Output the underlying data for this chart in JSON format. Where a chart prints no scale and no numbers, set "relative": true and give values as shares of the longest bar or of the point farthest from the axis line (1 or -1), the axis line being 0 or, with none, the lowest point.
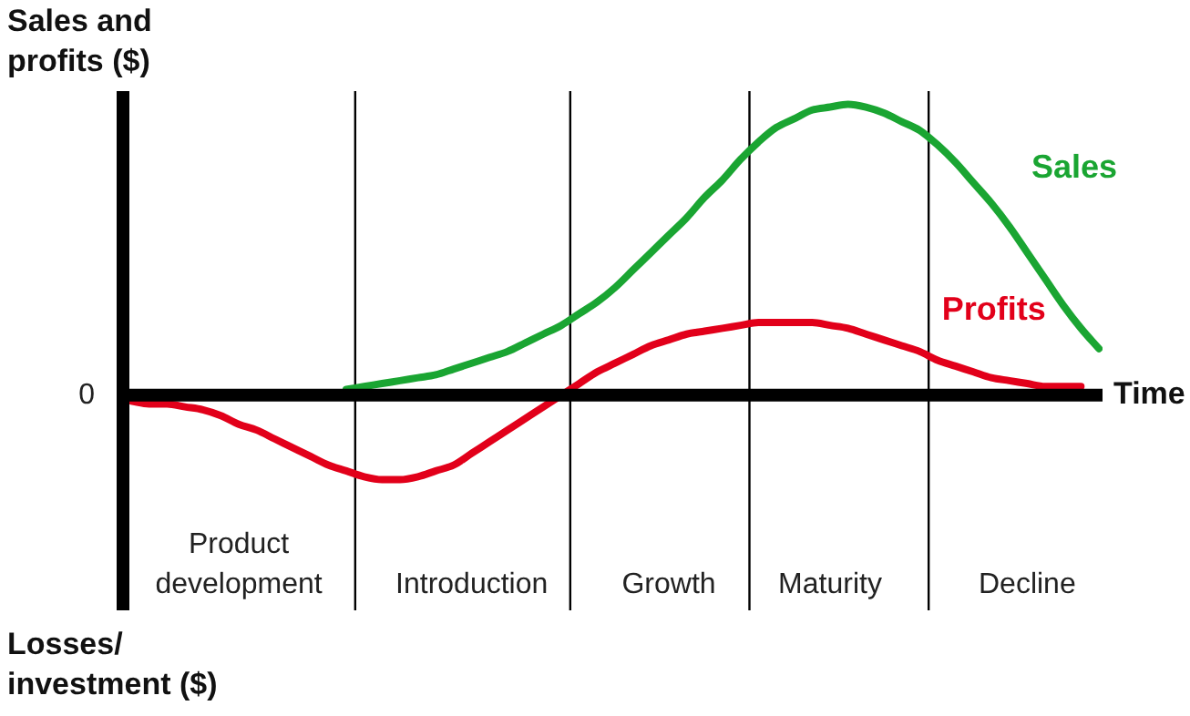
{
  "chart_data": {
    "type": "line",
    "relative": true,
    "ylabel": "Sales and profits ($)",
    "xlabel": "Time",
    "tick_labels": "x",
    "legend": false,
    "categories": [
      null,
      null,
      null,
      null,
      null,
      null,
      "Product development",
      null,
      null,
      null,
      null,
      null,
      null,
      null,
      null,
      null,
      null,
      null,
      null,
      "Introduction",
      null,
      null,
      null,
      null,
      null,
      null,
      null,
      null,
      null,
      null,
      "Growth",
      null,
      null,
      null,
      null,
      null,
      null,
      null,
      null,
      "Maturity",
      null,
      null,
      null,
      null,
      null,
      null,
      null,
      null,
      null,
      null,
      "Decline",
      null,
      null,
      null,
      null
    ],
    "series": [
      {
        "name": "Sales",
        "color": "#1aa532",
        "values": [
          null,
          null,
          null,
          null,
          null,
          null,
          null,
          null,
          null,
          null,
          null,
          null,
          0.02,
          0.03,
          0.04,
          0.05,
          0.06,
          0.07,
          0.09,
          0.11,
          0.13,
          0.15,
          0.18,
          0.21,
          0.24,
          0.28,
          0.32,
          0.37,
          0.43,
          0.49,
          0.55,
          0.61,
          0.68,
          0.74,
          0.81,
          0.87,
          0.92,
          0.95,
          0.98,
          0.99,
          1,
          0.99,
          0.97,
          0.94,
          0.91,
          0.86,
          0.8,
          0.73,
          0.66,
          0.58,
          0.49,
          0.4,
          0.31,
          0.23,
          0.16
        ]
      },
      {
        "name": "Profits",
        "color": "#e2001a",
        "values": [
          -0.02,
          -0.03,
          -0.03,
          -0.04,
          -0.05,
          -0.07,
          -0.1,
          -0.12,
          -0.15,
          -0.18,
          -0.21,
          -0.24,
          -0.26,
          -0.28,
          -0.29,
          -0.29,
          -0.28,
          -0.26,
          -0.24,
          -0.2,
          -0.16,
          -0.12,
          -0.08,
          -0.04,
          0,
          0.04,
          0.08,
          0.11,
          0.14,
          0.17,
          0.19,
          0.21,
          0.22,
          0.23,
          0.24,
          0.25,
          0.25,
          0.25,
          0.25,
          0.24,
          0.23,
          0.21,
          0.19,
          0.17,
          0.15,
          0.12,
          0.1,
          0.08,
          0.06,
          0.05,
          0.04,
          0.03,
          0.03,
          0.03,
          null
        ]
      }
    ],
    "annotations": [
      "0",
      "Losses/ investment ($)"
    ]
  }
}
